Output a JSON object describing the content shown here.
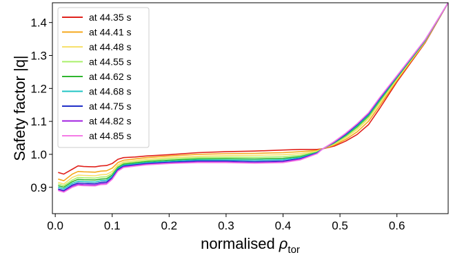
{
  "chart_data": {
    "type": "line",
    "xlabel_main": "normalised ",
    "xlabel_symbol": "ρ",
    "xlabel_subscript": "tor",
    "ylabel": "Safety factor |q|",
    "xlim": [
      -0.005,
      0.69
    ],
    "ylim": [
      0.82,
      1.46
    ],
    "xticks": [
      "0.0",
      "0.1",
      "0.2",
      "0.3",
      "0.4",
      "0.5",
      "0.6"
    ],
    "xtick_values": [
      0.0,
      0.1,
      0.2,
      0.3,
      0.4,
      0.5,
      0.6
    ],
    "yticks": [
      "0.9",
      "1.0",
      "1.1",
      "1.2",
      "1.3",
      "1.4"
    ],
    "ytick_values": [
      0.9,
      1.0,
      1.1,
      1.2,
      1.3,
      1.4
    ],
    "grid": false,
    "legend_position": "top-left",
    "series": [
      {
        "name": "at 44.35 s",
        "color": "#e0201a",
        "x": [
          0.005,
          0.015,
          0.03,
          0.04,
          0.05,
          0.07,
          0.08,
          0.09,
          0.1,
          0.11,
          0.12,
          0.14,
          0.16,
          0.2,
          0.25,
          0.3,
          0.35,
          0.4,
          0.43,
          0.46,
          0.47,
          0.49,
          0.51,
          0.53,
          0.55,
          0.57,
          0.6,
          0.65,
          0.69
        ],
        "y": [
          0.945,
          0.94,
          0.955,
          0.965,
          0.963,
          0.962,
          0.965,
          0.966,
          0.972,
          0.985,
          0.99,
          0.992,
          0.995,
          0.999,
          1.005,
          1.008,
          1.01,
          1.013,
          1.015,
          1.015,
          1.017,
          1.025,
          1.04,
          1.06,
          1.09,
          1.14,
          1.22,
          1.34,
          1.46
        ]
      },
      {
        "name": "at 44.41 s",
        "color": "#f5a81c",
        "x": [
          0.005,
          0.015,
          0.03,
          0.04,
          0.05,
          0.07,
          0.08,
          0.09,
          0.1,
          0.11,
          0.12,
          0.14,
          0.16,
          0.2,
          0.25,
          0.3,
          0.35,
          0.4,
          0.43,
          0.46,
          0.47,
          0.49,
          0.51,
          0.53,
          0.55,
          0.57,
          0.6,
          0.65,
          0.69
        ],
        "y": [
          0.925,
          0.92,
          0.94,
          0.948,
          0.947,
          0.946,
          0.949,
          0.95,
          0.958,
          0.975,
          0.982,
          0.986,
          0.99,
          0.995,
          1.0,
          1.002,
          1.003,
          1.005,
          1.008,
          1.012,
          1.017,
          1.028,
          1.045,
          1.068,
          1.1,
          1.148,
          1.224,
          1.342,
          1.46
        ]
      },
      {
        "name": "at 44.48 s",
        "color": "#f7e06a",
        "x": [
          0.005,
          0.015,
          0.03,
          0.04,
          0.05,
          0.07,
          0.08,
          0.09,
          0.1,
          0.11,
          0.12,
          0.14,
          0.16,
          0.2,
          0.25,
          0.3,
          0.35,
          0.4,
          0.43,
          0.46,
          0.47,
          0.49,
          0.51,
          0.53,
          0.55,
          0.57,
          0.6,
          0.65,
          0.69
        ],
        "y": [
          0.915,
          0.91,
          0.93,
          0.937,
          0.936,
          0.935,
          0.938,
          0.939,
          0.948,
          0.968,
          0.977,
          0.981,
          0.985,
          0.99,
          0.994,
          0.996,
          0.997,
          0.999,
          1.002,
          1.01,
          1.017,
          1.031,
          1.05,
          1.075,
          1.108,
          1.155,
          1.228,
          1.344,
          1.46
        ]
      },
      {
        "name": "at 44.55 s",
        "color": "#a8f06a",
        "x": [
          0.005,
          0.015,
          0.03,
          0.04,
          0.05,
          0.07,
          0.08,
          0.09,
          0.1,
          0.11,
          0.12,
          0.14,
          0.16,
          0.2,
          0.25,
          0.3,
          0.35,
          0.4,
          0.43,
          0.46,
          0.47,
          0.49,
          0.51,
          0.53,
          0.55,
          0.57,
          0.6,
          0.65,
          0.69
        ],
        "y": [
          0.91,
          0.905,
          0.922,
          0.93,
          0.929,
          0.928,
          0.931,
          0.932,
          0.942,
          0.963,
          0.973,
          0.977,
          0.981,
          0.986,
          0.99,
          0.991,
          0.991,
          0.993,
          0.997,
          1.008,
          1.017,
          1.033,
          1.054,
          1.08,
          1.113,
          1.16,
          1.231,
          1.345,
          1.46
        ]
      },
      {
        "name": "at 44.62 s",
        "color": "#2fb52f",
        "x": [
          0.005,
          0.015,
          0.03,
          0.04,
          0.05,
          0.07,
          0.08,
          0.09,
          0.1,
          0.11,
          0.12,
          0.14,
          0.16,
          0.2,
          0.25,
          0.3,
          0.35,
          0.4,
          0.43,
          0.46,
          0.47,
          0.49,
          0.51,
          0.53,
          0.55,
          0.57,
          0.6,
          0.65,
          0.69
        ],
        "y": [
          0.905,
          0.9,
          0.917,
          0.924,
          0.923,
          0.922,
          0.925,
          0.926,
          0.937,
          0.96,
          0.97,
          0.974,
          0.978,
          0.982,
          0.986,
          0.987,
          0.986,
          0.988,
          0.993,
          1.006,
          1.017,
          1.035,
          1.057,
          1.084,
          1.117,
          1.164,
          1.233,
          1.346,
          1.46
        ]
      },
      {
        "name": "at 44.68 s",
        "color": "#1fc4c4",
        "x": [
          0.005,
          0.015,
          0.03,
          0.04,
          0.05,
          0.07,
          0.08,
          0.09,
          0.1,
          0.11,
          0.12,
          0.14,
          0.16,
          0.2,
          0.25,
          0.3,
          0.35,
          0.4,
          0.43,
          0.46,
          0.47,
          0.49,
          0.51,
          0.53,
          0.55,
          0.57,
          0.6,
          0.65,
          0.69
        ],
        "y": [
          0.9,
          0.895,
          0.912,
          0.918,
          0.917,
          0.916,
          0.92,
          0.921,
          0.933,
          0.957,
          0.967,
          0.971,
          0.975,
          0.979,
          0.983,
          0.983,
          0.982,
          0.984,
          0.99,
          1.005,
          1.017,
          1.036,
          1.059,
          1.087,
          1.12,
          1.167,
          1.235,
          1.347,
          1.46
        ]
      },
      {
        "name": "at 44.75 s",
        "color": "#1f2ec8",
        "x": [
          0.005,
          0.015,
          0.03,
          0.04,
          0.05,
          0.07,
          0.08,
          0.09,
          0.1,
          0.11,
          0.12,
          0.14,
          0.16,
          0.2,
          0.25,
          0.3,
          0.35,
          0.4,
          0.43,
          0.46,
          0.47,
          0.49,
          0.51,
          0.53,
          0.55,
          0.57,
          0.6,
          0.65,
          0.69
        ],
        "y": [
          0.895,
          0.89,
          0.907,
          0.913,
          0.912,
          0.911,
          0.915,
          0.916,
          0.929,
          0.954,
          0.964,
          0.968,
          0.972,
          0.976,
          0.98,
          0.98,
          0.978,
          0.98,
          0.987,
          1.004,
          1.017,
          1.037,
          1.061,
          1.09,
          1.123,
          1.17,
          1.237,
          1.348,
          1.46
        ]
      },
      {
        "name": "at 44.82 s",
        "color": "#a01fe0",
        "x": [
          0.005,
          0.015,
          0.03,
          0.04,
          0.05,
          0.07,
          0.08,
          0.09,
          0.1,
          0.11,
          0.12,
          0.14,
          0.16,
          0.2,
          0.25,
          0.3,
          0.35,
          0.4,
          0.43,
          0.46,
          0.47,
          0.49,
          0.51,
          0.53,
          0.55,
          0.57,
          0.6,
          0.65,
          0.69
        ],
        "y": [
          0.892,
          0.887,
          0.903,
          0.909,
          0.908,
          0.907,
          0.911,
          0.912,
          0.926,
          0.951,
          0.962,
          0.966,
          0.97,
          0.974,
          0.977,
          0.977,
          0.975,
          0.977,
          0.985,
          1.003,
          1.017,
          1.038,
          1.063,
          1.092,
          1.125,
          1.172,
          1.238,
          1.349,
          1.46
        ]
      },
      {
        "name": "at 44.85 s",
        "color": "#f57ae6",
        "x": [
          0.005,
          0.015,
          0.03,
          0.04,
          0.05,
          0.07,
          0.08,
          0.09,
          0.1,
          0.11,
          0.12,
          0.14,
          0.16,
          0.2,
          0.25,
          0.3,
          0.35,
          0.4,
          0.43,
          0.46,
          0.47,
          0.49,
          0.51,
          0.53,
          0.55,
          0.57,
          0.6,
          0.65,
          0.69
        ],
        "y": [
          0.89,
          0.885,
          0.9,
          0.906,
          0.905,
          0.904,
          0.908,
          0.909,
          0.924,
          0.949,
          0.96,
          0.964,
          0.968,
          0.972,
          0.975,
          0.975,
          0.973,
          0.975,
          0.983,
          1.002,
          1.017,
          1.039,
          1.064,
          1.093,
          1.126,
          1.173,
          1.239,
          1.349,
          1.46
        ]
      }
    ]
  }
}
